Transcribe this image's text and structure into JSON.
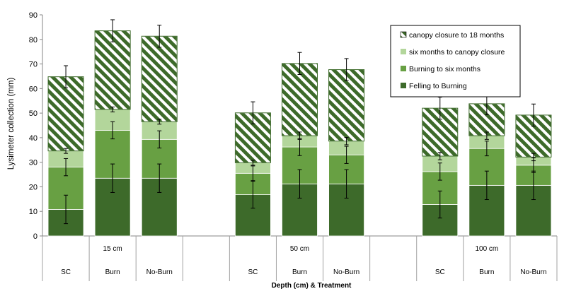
{
  "chart_data": {
    "type": "bar",
    "stacked": true,
    "xlabel": "Depth (cm) & Treatment",
    "ylabel": "Lysimeter collection (mm)",
    "ylim": [
      0,
      90
    ],
    "yticks": [
      0,
      10,
      20,
      30,
      40,
      50,
      60,
      70,
      80,
      90
    ],
    "grid": false,
    "legend_position": "top-right",
    "groups": [
      "15 cm",
      "50 cm",
      "100 cm"
    ],
    "categories": [
      "SC",
      "Burn",
      "No-Burn",
      "SC",
      "Burn",
      "No-Burn",
      "SC",
      "Burn",
      "No-Burn"
    ],
    "group_of_category": [
      0,
      0,
      0,
      1,
      1,
      1,
      2,
      2,
      2
    ],
    "series": [
      {
        "name": "Felling to Burning",
        "color": "#3d6a2a",
        "pattern": "solid",
        "values": [
          10.8,
          23.5,
          23.5,
          16.8,
          21.2,
          21.2,
          12.8,
          20.6,
          20.6
        ]
      },
      {
        "name": "Burning to six months",
        "color": "#68a043",
        "pattern": "solid",
        "values": [
          17.2,
          19.5,
          15.8,
          8.7,
          15.0,
          11.8,
          13.4,
          15.0,
          8.2
        ]
      },
      {
        "name": "six months to canopy closure",
        "color": "#b3d69b",
        "pattern": "solid",
        "values": [
          6.6,
          8.5,
          7.2,
          4.3,
          4.6,
          5.6,
          6.3,
          5.2,
          3.3
        ]
      },
      {
        "name": "canopy closure to 18 months",
        "color": "#3d6a2a",
        "pattern": "diagonal-hatch",
        "values": [
          30.2,
          32.0,
          34.8,
          20.3,
          29.4,
          29.1,
          19.5,
          13.0,
          17.1
        ]
      }
    ],
    "error_bars": [
      [
        5.8,
        5.8,
        5.8,
        5.5,
        5.8,
        5.8,
        5.5,
        5.8,
        5.8
      ],
      [
        3.5,
        3.5,
        3.5,
        3.0,
        3.5,
        3.5,
        3.5,
        3.0,
        3.0
      ],
      [
        1.0,
        1.0,
        1.0,
        1.0,
        1.5,
        1.5,
        1.5,
        1.5,
        1.5
      ],
      [
        4.5,
        4.5,
        4.5,
        4.5,
        4.5,
        4.5,
        4.5,
        4.5,
        4.5
      ]
    ],
    "legend_order": [
      "canopy closure to 18 months",
      "six months to canopy closure",
      "Burning to six months",
      "Felling to Burning"
    ]
  }
}
